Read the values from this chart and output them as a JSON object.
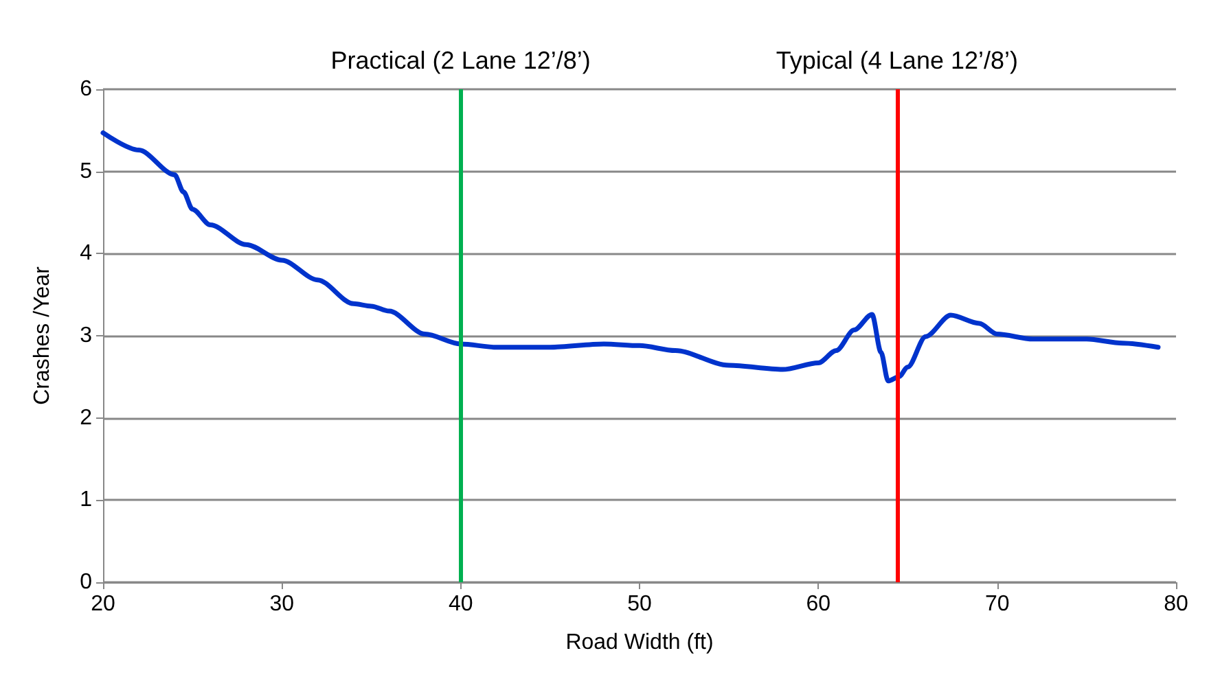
{
  "chart_data": {
    "type": "line",
    "xlabel": "Road Width (ft)",
    "ylabel": "Crashes /Year",
    "x": [
      20,
      22,
      24,
      24.5,
      25,
      26,
      28,
      30,
      32,
      34,
      35,
      36,
      38,
      40,
      42,
      45,
      48,
      50,
      52,
      55,
      58,
      60,
      61,
      62,
      63,
      63.5,
      63.9,
      64.5,
      65,
      66,
      67.4,
      69,
      70,
      72,
      75,
      77,
      79
    ],
    "series": [
      {
        "color": "#0033cc",
        "values": [
          5.47,
          5.26,
          4.96,
          4.75,
          4.54,
          4.35,
          4.11,
          3.92,
          3.68,
          3.39,
          3.36,
          3.3,
          3.02,
          2.9,
          2.86,
          2.86,
          2.9,
          2.88,
          2.82,
          2.64,
          2.59,
          2.67,
          2.82,
          3.07,
          3.26,
          2.8,
          2.45,
          2.5,
          2.62,
          2.99,
          3.25,
          3.15,
          3.02,
          2.96,
          2.96,
          2.91,
          2.86
        ]
      }
    ],
    "xlim": [
      20,
      80
    ],
    "xticks": [
      20,
      30,
      40,
      50,
      60,
      70,
      80
    ],
    "ylim": [
      0,
      6
    ],
    "yticks": [
      0,
      1,
      2,
      3,
      4,
      5,
      6
    ],
    "grid": "y",
    "marker": "none",
    "line_style": "solid",
    "ref_lines": [
      {
        "axis": "x",
        "value": 40,
        "label": "Practical (2 Lane 12’/8’)",
        "color": "#00b050"
      },
      {
        "axis": "x",
        "value": 64.4,
        "label": "Typical (4 Lane 12’/8’)",
        "color": "#ff0000"
      }
    ]
  }
}
